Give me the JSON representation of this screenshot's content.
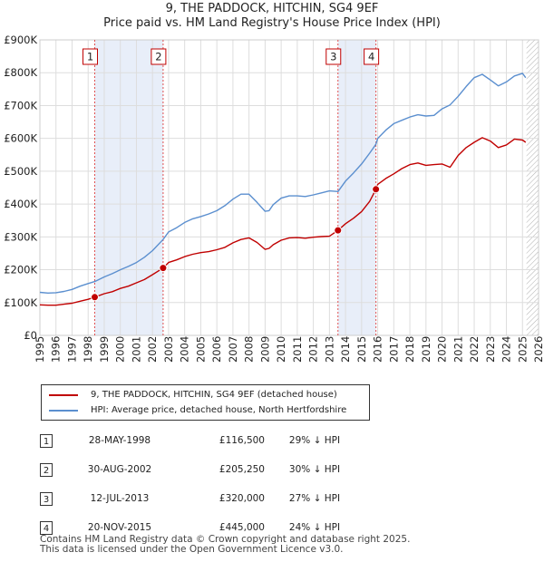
{
  "title_line1": "9, THE PADDOCK, HITCHIN, SG4 9EF",
  "title_line2": "Price paid vs. HM Land Registry's House Price Index (HPI)",
  "chart_data": {
    "type": "line",
    "title": "Price paid vs. HM Land Registry's House Price Index (HPI)",
    "xlabel": "",
    "ylabel": "",
    "xlim": [
      1995,
      2026
    ],
    "ylim": [
      0,
      900000
    ],
    "x_ticks": [
      "1995",
      "1996",
      "1997",
      "1998",
      "1999",
      "2000",
      "2001",
      "2002",
      "2003",
      "2004",
      "2005",
      "2006",
      "2007",
      "2008",
      "2009",
      "2010",
      "2011",
      "2012",
      "2013",
      "2014",
      "2015",
      "2016",
      "2017",
      "2018",
      "2019",
      "2020",
      "2021",
      "2022",
      "2023",
      "2024",
      "2025",
      "2026"
    ],
    "y_ticks": [
      {
        "value": 0,
        "label": "£0"
      },
      {
        "value": 100000,
        "label": "£100K"
      },
      {
        "value": 200000,
        "label": "£200K"
      },
      {
        "value": 300000,
        "label": "£300K"
      },
      {
        "value": 400000,
        "label": "£400K"
      },
      {
        "value": 500000,
        "label": "£500K"
      },
      {
        "value": 600000,
        "label": "£600K"
      },
      {
        "value": 700000,
        "label": "£700K"
      },
      {
        "value": 800000,
        "label": "£800K"
      },
      {
        "value": 900000,
        "label": "£900K"
      }
    ],
    "shaded_ranges": [
      [
        1998.41,
        2002.66
      ],
      [
        2013.53,
        2015.89
      ]
    ],
    "future_from": 2025.25,
    "series": [
      {
        "name": "9, THE PADDOCK, HITCHIN, SG4 9EF (detached house)",
        "color": "#c00000",
        "x": [
          1995.0,
          1995.5,
          1996.0,
          1996.5,
          1997.0,
          1997.5,
          1998.0,
          1998.41,
          1999.0,
          1999.5,
          2000.0,
          2000.5,
          2001.0,
          2001.5,
          2002.0,
          2002.66,
          2003.0,
          2003.5,
          2004.0,
          2004.5,
          2005.0,
          2005.5,
          2006.0,
          2006.5,
          2007.0,
          2007.5,
          2008.0,
          2008.5,
          2009.0,
          2009.25,
          2009.5,
          2010.0,
          2010.5,
          2011.0,
          2011.5,
          2012.0,
          2012.5,
          2013.0,
          2013.53,
          2014.0,
          2014.5,
          2015.0,
          2015.5,
          2015.89,
          2016.0,
          2016.5,
          2017.0,
          2017.5,
          2018.0,
          2018.5,
          2019.0,
          2019.5,
          2020.0,
          2020.5,
          2021.0,
          2021.5,
          2022.0,
          2022.5,
          2023.0,
          2023.5,
          2024.0,
          2024.5,
          2025.0,
          2025.2
        ],
        "values": [
          93000,
          92000,
          92000,
          95000,
          98000,
          104000,
          110000,
          116500,
          127000,
          133000,
          143000,
          150000,
          160000,
          170000,
          185000,
          205250,
          222000,
          230000,
          240000,
          247000,
          252000,
          255000,
          261000,
          268000,
          282000,
          292000,
          297000,
          283000,
          262000,
          265000,
          276000,
          290000,
          297000,
          298000,
          296000,
          299000,
          301000,
          302000,
          320000,
          340000,
          357000,
          377000,
          408000,
          445000,
          460000,
          478000,
          492000,
          508000,
          520000,
          525000,
          518000,
          520000,
          522000,
          512000,
          548000,
          572000,
          588000,
          602000,
          592000,
          572000,
          580000,
          598000,
          595000,
          588000
        ]
      },
      {
        "name": "HPI: Average price, detached house, North Hertfordshire",
        "color": "#5b8fcf",
        "x": [
          1995.0,
          1995.5,
          1996.0,
          1996.5,
          1997.0,
          1997.5,
          1998.0,
          1998.41,
          1999.0,
          1999.5,
          2000.0,
          2000.5,
          2001.0,
          2001.5,
          2002.0,
          2002.66,
          2003.0,
          2003.5,
          2004.0,
          2004.5,
          2005.0,
          2005.5,
          2006.0,
          2006.5,
          2007.0,
          2007.5,
          2008.0,
          2008.5,
          2009.0,
          2009.25,
          2009.5,
          2010.0,
          2010.5,
          2011.0,
          2011.5,
          2012.0,
          2012.5,
          2013.0,
          2013.53,
          2014.0,
          2014.5,
          2015.0,
          2015.5,
          2015.89,
          2016.0,
          2016.5,
          2017.0,
          2017.5,
          2018.0,
          2018.5,
          2019.0,
          2019.5,
          2020.0,
          2020.5,
          2021.0,
          2021.5,
          2022.0,
          2022.5,
          2023.0,
          2023.5,
          2024.0,
          2024.5,
          2025.0,
          2025.2
        ],
        "values": [
          131000,
          129000,
          130000,
          134000,
          140000,
          150000,
          158000,
          164000,
          178000,
          188000,
          200000,
          210000,
          222000,
          238000,
          258000,
          292000,
          315000,
          328000,
          344000,
          355000,
          362000,
          370000,
          380000,
          395000,
          415000,
          430000,
          430000,
          405000,
          378000,
          380000,
          398000,
          418000,
          425000,
          425000,
          423000,
          428000,
          434000,
          440000,
          438000,
          470000,
          495000,
          522000,
          555000,
          582000,
          600000,
          625000,
          645000,
          655000,
          665000,
          672000,
          668000,
          670000,
          690000,
          702000,
          728000,
          758000,
          785000,
          795000,
          778000,
          760000,
          772000,
          790000,
          798000,
          785000
        ]
      }
    ],
    "sales": [
      {
        "id": "1",
        "x": 1998.41,
        "value": 116500
      },
      {
        "id": "2",
        "x": 2002.66,
        "value": 205250
      },
      {
        "id": "3",
        "x": 2013.53,
        "value": 320000
      },
      {
        "id": "4",
        "x": 2015.89,
        "value": 445000
      }
    ]
  },
  "legend": [
    {
      "label": "9, THE PADDOCK, HITCHIN, SG4 9EF (detached house)",
      "color": "#c00000"
    },
    {
      "label": "HPI: Average price, detached house, North Hertfordshire",
      "color": "#5b8fcf"
    }
  ],
  "transactions": [
    {
      "num": "1",
      "date": "28-MAY-1998",
      "price": "£116,500",
      "hpi": "29% ↓ HPI"
    },
    {
      "num": "2",
      "date": "30-AUG-2002",
      "price": "£205,250",
      "hpi": "30% ↓ HPI"
    },
    {
      "num": "3",
      "date": "12-JUL-2013",
      "price": "£320,000",
      "hpi": "27% ↓ HPI"
    },
    {
      "num": "4",
      "date": "20-NOV-2015",
      "price": "£445,000",
      "hpi": "24% ↓ HPI"
    }
  ],
  "footer_line1": "Contains HM Land Registry data © Crown copyright and database right 2025.",
  "footer_line2": "This data is licensed under the Open Government Licence v3.0."
}
